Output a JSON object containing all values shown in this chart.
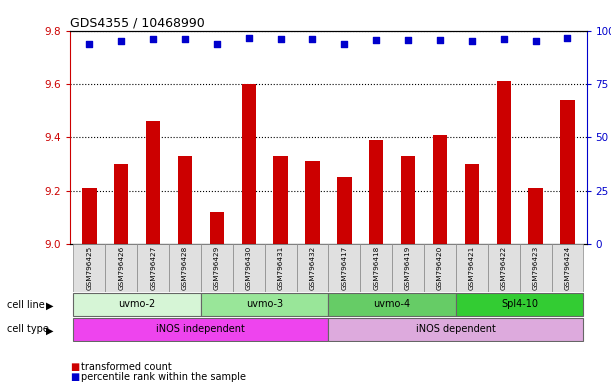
{
  "title": "GDS4355 / 10468990",
  "samples": [
    "GSM796425",
    "GSM796426",
    "GSM796427",
    "GSM796428",
    "GSM796429",
    "GSM796430",
    "GSM796431",
    "GSM796432",
    "GSM796417",
    "GSM796418",
    "GSM796419",
    "GSM796420",
    "GSM796421",
    "GSM796422",
    "GSM796423",
    "GSM796424"
  ],
  "bar_values": [
    9.21,
    9.3,
    9.46,
    9.33,
    9.12,
    9.6,
    9.33,
    9.31,
    9.25,
    9.39,
    9.33,
    9.41,
    9.3,
    9.61,
    9.21,
    9.54
  ],
  "percentile_values": [
    94,
    95,
    96,
    96,
    94,
    96.5,
    96,
    96,
    94,
    95.5,
    95.5,
    95.5,
    95,
    96,
    95,
    96.5
  ],
  "bar_color": "#cc0000",
  "percentile_color": "#0000cc",
  "ylim_left": [
    9.0,
    9.8
  ],
  "ylim_right": [
    0,
    100
  ],
  "yticks_left": [
    9.0,
    9.2,
    9.4,
    9.6,
    9.8
  ],
  "yticks_right": [
    0,
    25,
    50,
    75,
    100
  ],
  "cell_lines": [
    {
      "label": "uvmo-2",
      "start": 0,
      "end": 3,
      "color": "#d6f5d6"
    },
    {
      "label": "uvmo-3",
      "start": 4,
      "end": 7,
      "color": "#99e699"
    },
    {
      "label": "uvmo-4",
      "start": 8,
      "end": 11,
      "color": "#66cc66"
    },
    {
      "label": "Spl4-10",
      "start": 12,
      "end": 15,
      "color": "#33cc33"
    }
  ],
  "cell_types": [
    {
      "label": "iNOS independent",
      "start": 0,
      "end": 7,
      "color": "#ee44ee"
    },
    {
      "label": "iNOS dependent",
      "start": 8,
      "end": 15,
      "color": "#ddaadd"
    }
  ],
  "legend_items": [
    {
      "label": "transformed count",
      "color": "#cc0000"
    },
    {
      "label": "percentile rank within the sample",
      "color": "#0000cc"
    }
  ],
  "axis_color_left": "#cc0000",
  "axis_color_right": "#0000cc",
  "sample_box_color": "#e0e0e0",
  "grid_linestyle": "dotted"
}
